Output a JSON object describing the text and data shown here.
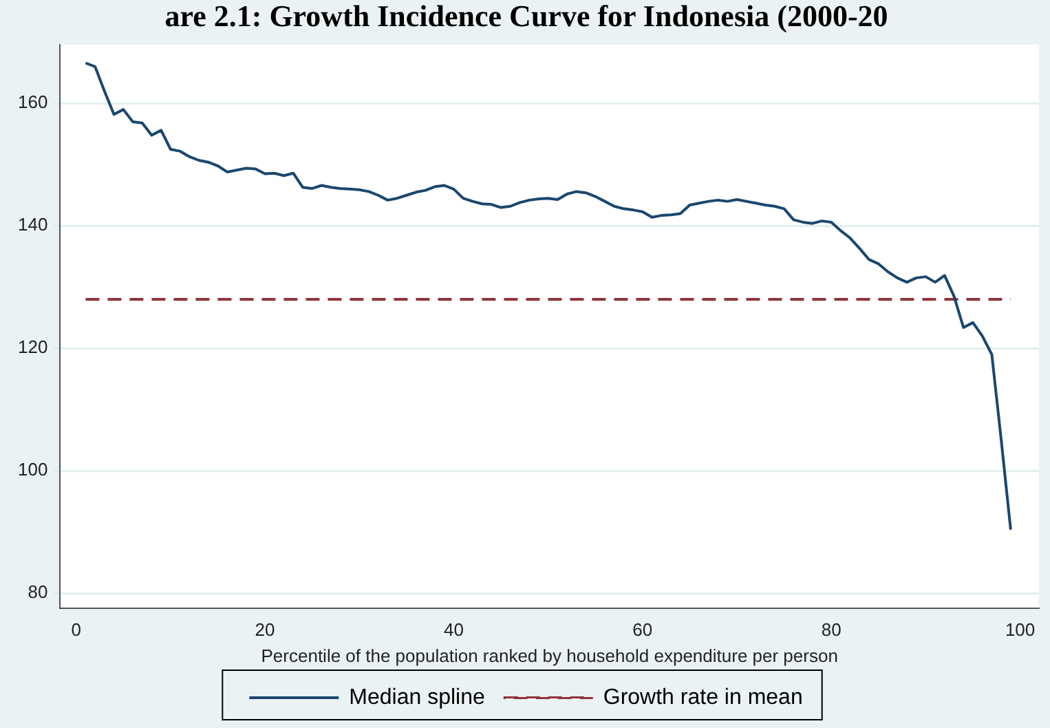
{
  "chart_data": {
    "type": "line",
    "title": "are 2.1: Growth Incidence Curve for Indonesia (2000-20",
    "xlabel": "Percentile of the population ranked by household expenditure per person",
    "x": [
      1,
      2,
      3,
      4,
      5,
      6,
      7,
      8,
      9,
      10,
      11,
      12,
      13,
      14,
      15,
      16,
      17,
      18,
      19,
      20,
      21,
      22,
      23,
      24,
      25,
      26,
      27,
      28,
      29,
      30,
      31,
      32,
      33,
      34,
      35,
      36,
      37,
      38,
      39,
      40,
      41,
      42,
      43,
      44,
      45,
      46,
      47,
      48,
      49,
      50,
      51,
      52,
      53,
      54,
      55,
      56,
      57,
      58,
      59,
      60,
      61,
      62,
      63,
      64,
      65,
      66,
      67,
      68,
      69,
      70,
      71,
      72,
      73,
      74,
      75,
      76,
      77,
      78,
      79,
      80,
      81,
      82,
      83,
      84,
      85,
      86,
      87,
      88,
      89,
      90,
      91,
      92,
      93,
      94,
      95,
      96,
      97,
      98,
      99
    ],
    "series": [
      {
        "name": "Median spline",
        "color": "#1a476f",
        "line_style": "solid",
        "values": [
          166.6,
          166,
          162,
          158.2,
          159,
          157,
          156.8,
          154.8,
          155.6,
          152.5,
          152.2,
          151.3,
          150.7,
          150.4,
          149.8,
          148.8,
          149.1,
          149.4,
          149.3,
          148.5,
          148.6,
          148.2,
          148.6,
          146.3,
          146.1,
          146.6,
          146.3,
          146.1,
          146,
          145.9,
          145.6,
          145,
          144.2,
          144.5,
          145,
          145.5,
          145.8,
          146.4,
          146.6,
          146,
          144.5,
          144,
          143.6,
          143.5,
          143,
          143.2,
          143.8,
          144.2,
          144.4,
          144.5,
          144.3,
          145.2,
          145.6,
          145.4,
          144.8,
          144,
          143.2,
          142.8,
          142.6,
          142.3,
          141.4,
          141.7,
          141.8,
          142,
          143.4,
          143.7,
          144,
          144.2,
          144,
          144.3,
          144,
          143.7,
          143.4,
          143.2,
          142.8,
          141,
          140.6,
          140.4,
          140.8,
          140.6,
          139.2,
          138,
          136.3,
          134.5,
          133.8,
          132.5,
          131.5,
          130.8,
          131.5,
          131.7,
          130.8,
          131.9,
          128.5,
          123.4,
          124.2,
          122,
          119,
          105,
          90.4
        ]
      },
      {
        "name": "Growth rate in mean",
        "color": "#90353b",
        "line_style": "dashed",
        "x": [
          1,
          99
        ],
        "values": [
          128,
          128
        ]
      }
    ],
    "xlim": [
      -1.7,
      102
    ],
    "xticks": [
      0,
      20,
      40,
      60,
      80,
      100
    ],
    "ylim": [
      77.6,
      169.6
    ],
    "yticks": [
      80,
      100,
      120,
      140,
      160
    ],
    "grid": "y",
    "legend": "bottom",
    "marker": "none"
  }
}
